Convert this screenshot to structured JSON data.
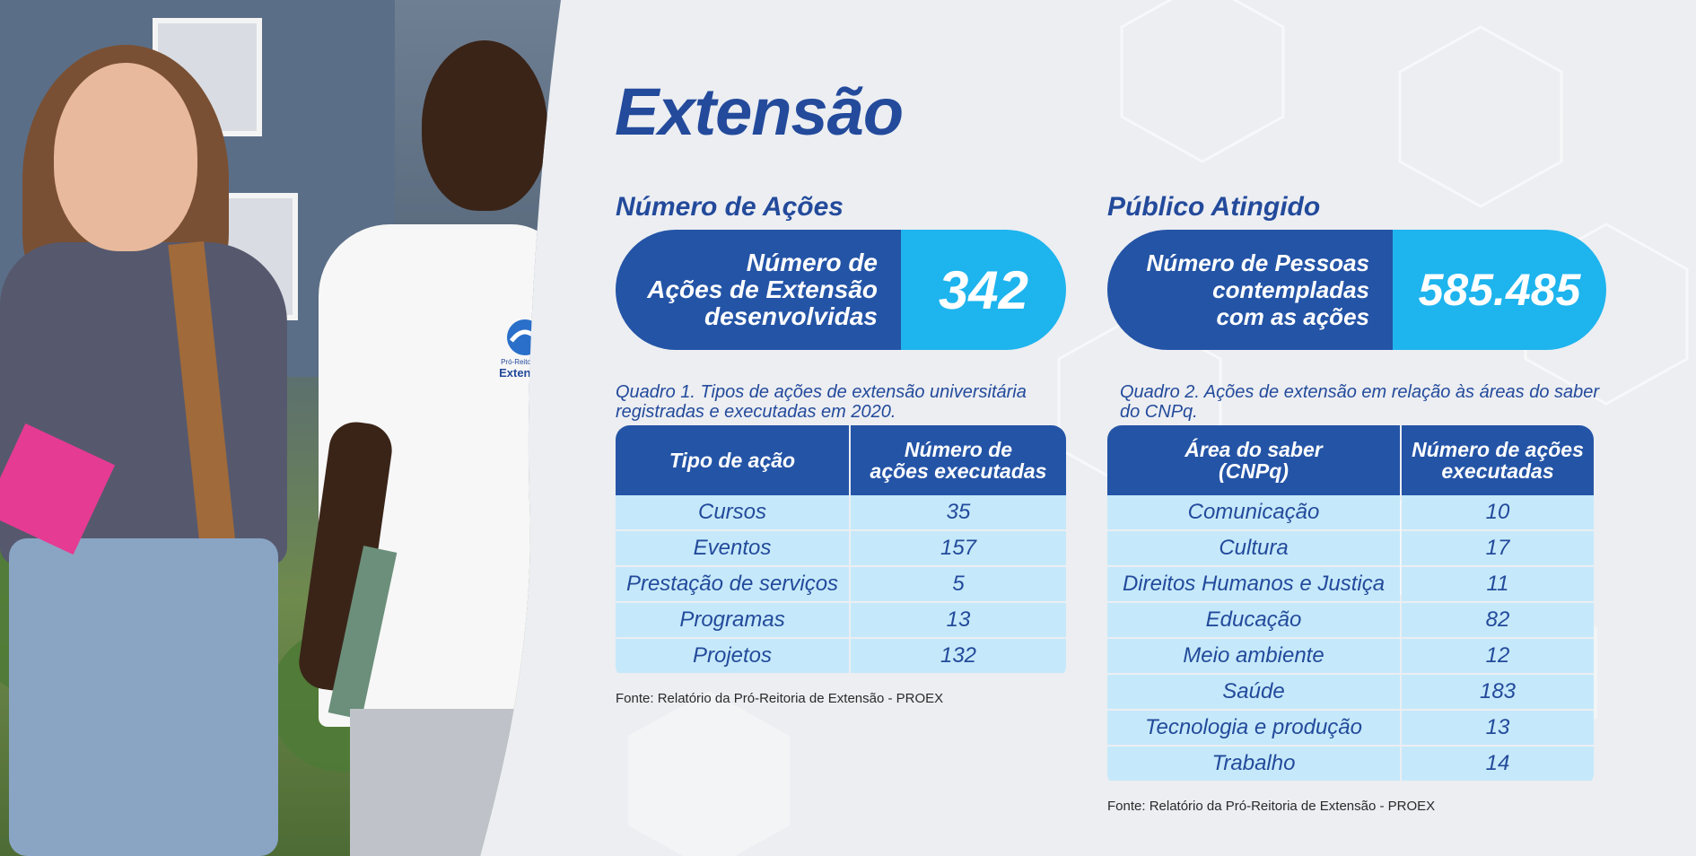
{
  "page": {
    "title": "Extensão"
  },
  "photo": {
    "polo_logo_text_1": "Pró-Reitoria de",
    "polo_logo_text_2": "Extensão"
  },
  "acoes": {
    "section_title": "Número de Ações",
    "stat_label_lines": [
      "Número de",
      "Ações de Extensão",
      "desenvolvidas"
    ],
    "stat_value": "342",
    "caption_lines": [
      "Quadro 1. Tipos de ações de extensão universitária",
      "registradas e executadas em 2020."
    ],
    "headers": [
      [
        "Tipo de ação"
      ],
      [
        "Número de",
        "ações executadas"
      ]
    ],
    "rows": [
      {
        "tipo": "Cursos",
        "numero": "35"
      },
      {
        "tipo": "Eventos",
        "numero": "157"
      },
      {
        "tipo": "Prestação de serviços",
        "numero": "5"
      },
      {
        "tipo": "Programas",
        "numero": "13"
      },
      {
        "tipo": "Projetos",
        "numero": "132"
      }
    ],
    "fonte": "Fonte: Relatório da Pró-Reitoria de Extensão - PROEX"
  },
  "publico": {
    "section_title": "Público Atingido",
    "stat_label_lines": [
      "Número de Pessoas",
      "contempladas",
      "com as ações"
    ],
    "stat_value": "585.485",
    "caption_lines": [
      "Quadro 2. Ações de extensão em relação às áreas do saber",
      "do CNPq."
    ],
    "headers": [
      [
        "Área do saber",
        "(CNPq)"
      ],
      [
        "Número de ações",
        "executadas"
      ]
    ],
    "rows": [
      {
        "area": "Comunicação",
        "numero": "10"
      },
      {
        "area": "Cultura",
        "numero": "17"
      },
      {
        "area": "Direitos Humanos e Justiça",
        "numero": "11"
      },
      {
        "area": "Educação",
        "numero": "82"
      },
      {
        "area": "Meio ambiente",
        "numero": "12"
      },
      {
        "area": "Saúde",
        "numero": "183"
      },
      {
        "area": "Tecnologia e produção",
        "numero": "13"
      },
      {
        "area": "Trabalho",
        "numero": "14"
      }
    ],
    "fonte": "Fonte: Relatório da Pró-Reitoria de Extensão - PROEX"
  },
  "colors": {
    "navy": "#2454a6",
    "cyan": "#1eb4ee",
    "light_cyan": "#c5e9fa",
    "title": "#234a9b"
  }
}
